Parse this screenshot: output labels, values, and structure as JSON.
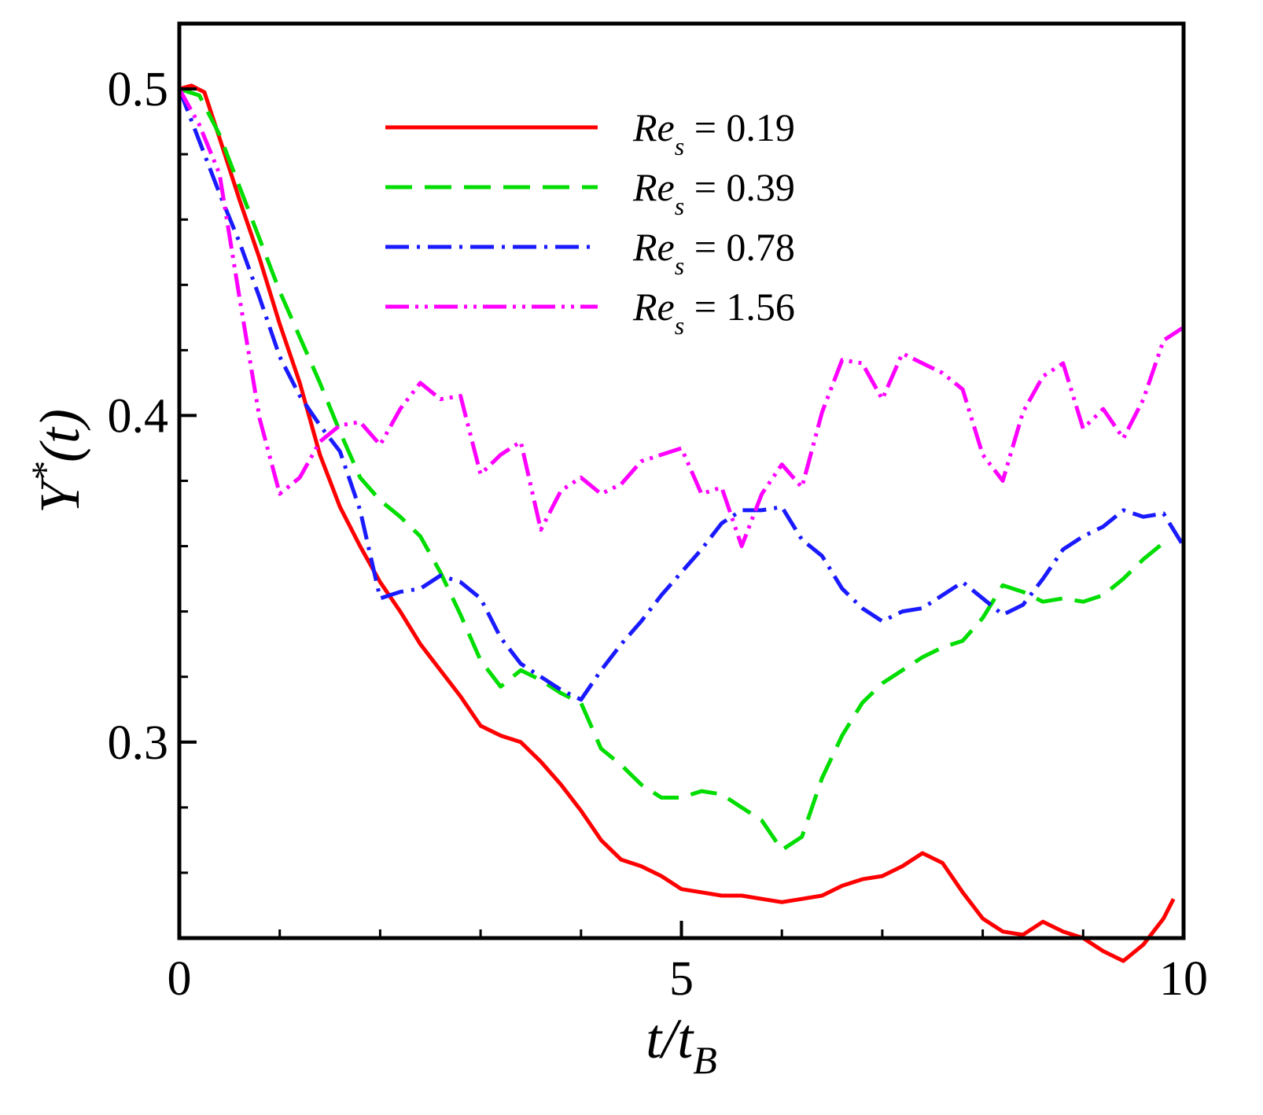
{
  "chart_data": {
    "type": "line",
    "title": "",
    "xlabel": {
      "main": "t/t",
      "subscript": "B"
    },
    "ylabel": {
      "main": "Y",
      "superscript": "*",
      "suffix": "(t)"
    },
    "xlim": [
      0,
      10
    ],
    "ylim": [
      0.24,
      0.52
    ],
    "xticks": [
      0,
      5,
      10
    ],
    "xtick_labels": [
      "0",
      "5",
      "10"
    ],
    "yticks": [
      0.3,
      0.4,
      0.5
    ],
    "ytick_labels": [
      "0.3",
      "0.4",
      "0.5"
    ],
    "grid": false,
    "legend_position": "top-center",
    "series": [
      {
        "name": "Re_s = 0.19",
        "label_main": "Re",
        "label_sub": "s",
        "label_value": " = 0.19",
        "color": "#ff0000",
        "dash": "solid",
        "x": [
          0,
          0.12,
          0.25,
          0.4,
          0.6,
          0.8,
          1.0,
          1.2,
          1.4,
          1.6,
          1.8,
          2.0,
          2.2,
          2.4,
          2.6,
          2.8,
          3.0,
          3.2,
          3.4,
          3.6,
          3.8,
          4.0,
          4.2,
          4.4,
          4.6,
          4.8,
          5.0,
          5.2,
          5.4,
          5.6,
          5.8,
          6.0,
          6.2,
          6.4,
          6.6,
          6.8,
          7.0,
          7.2,
          7.4,
          7.6,
          7.8,
          8.0,
          8.2,
          8.4,
          8.6,
          8.8,
          9.0,
          9.2,
          9.4,
          9.6,
          9.8,
          9.9
        ],
        "y": [
          0.5,
          0.501,
          0.499,
          0.485,
          0.466,
          0.448,
          0.428,
          0.41,
          0.388,
          0.372,
          0.36,
          0.349,
          0.34,
          0.33,
          0.322,
          0.314,
          0.305,
          0.302,
          0.3,
          0.294,
          0.287,
          0.279,
          0.27,
          0.264,
          0.262,
          0.259,
          0.255,
          0.254,
          0.253,
          0.253,
          0.252,
          0.251,
          0.252,
          0.253,
          0.256,
          0.258,
          0.259,
          0.262,
          0.266,
          0.263,
          0.254,
          0.246,
          0.242,
          0.241,
          0.245,
          0.242,
          0.24,
          0.236,
          0.233,
          0.238,
          0.246,
          0.252
        ]
      },
      {
        "name": "Re_s = 0.39",
        "label_main": "Re",
        "label_sub": "s",
        "label_value": " = 0.39",
        "color": "#00dd00",
        "dash": "dashed",
        "x": [
          0,
          0.2,
          0.4,
          0.6,
          0.8,
          1.0,
          1.2,
          1.4,
          1.6,
          1.8,
          2.0,
          2.2,
          2.4,
          2.6,
          2.8,
          3.0,
          3.2,
          3.4,
          3.6,
          3.8,
          4.0,
          4.2,
          4.4,
          4.6,
          4.8,
          5.0,
          5.2,
          5.4,
          5.6,
          5.8,
          6.0,
          6.2,
          6.4,
          6.6,
          6.8,
          7.0,
          7.2,
          7.4,
          7.6,
          7.8,
          8.0,
          8.2,
          8.4,
          8.6,
          8.8,
          9.0,
          9.2,
          9.4,
          9.6,
          9.8
        ],
        "y": [
          0.5,
          0.498,
          0.486,
          0.47,
          0.454,
          0.438,
          0.424,
          0.41,
          0.395,
          0.381,
          0.374,
          0.369,
          0.363,
          0.352,
          0.339,
          0.325,
          0.317,
          0.322,
          0.319,
          0.315,
          0.312,
          0.298,
          0.293,
          0.287,
          0.283,
          0.283,
          0.285,
          0.284,
          0.28,
          0.276,
          0.267,
          0.271,
          0.289,
          0.302,
          0.312,
          0.318,
          0.322,
          0.326,
          0.329,
          0.331,
          0.338,
          0.348,
          0.346,
          0.343,
          0.344,
          0.343,
          0.345,
          0.35,
          0.356,
          0.361
        ]
      },
      {
        "name": "Re_s = 0.78",
        "label_main": "Re",
        "label_sub": "s",
        "label_value": " = 0.78",
        "color": "#1a1aff",
        "dash": "dashdot",
        "x": [
          0,
          0.2,
          0.4,
          0.6,
          0.8,
          1.0,
          1.2,
          1.4,
          1.6,
          1.8,
          2.0,
          2.2,
          2.4,
          2.6,
          2.8,
          3.0,
          3.2,
          3.4,
          3.6,
          3.8,
          4.0,
          4.2,
          4.4,
          4.6,
          4.8,
          5.0,
          5.2,
          5.4,
          5.6,
          5.8,
          6.0,
          6.2,
          6.4,
          6.6,
          6.8,
          7.0,
          7.2,
          7.4,
          7.6,
          7.8,
          8.0,
          8.2,
          8.4,
          8.6,
          8.8,
          9.0,
          9.2,
          9.4,
          9.6,
          9.8,
          10.0
        ],
        "y": [
          0.5,
          0.484,
          0.468,
          0.453,
          0.436,
          0.418,
          0.406,
          0.397,
          0.389,
          0.371,
          0.344,
          0.346,
          0.347,
          0.351,
          0.349,
          0.344,
          0.332,
          0.324,
          0.32,
          0.316,
          0.313,
          0.322,
          0.33,
          0.337,
          0.345,
          0.352,
          0.359,
          0.367,
          0.371,
          0.371,
          0.372,
          0.362,
          0.357,
          0.347,
          0.341,
          0.337,
          0.34,
          0.341,
          0.345,
          0.349,
          0.344,
          0.339,
          0.342,
          0.35,
          0.359,
          0.363,
          0.366,
          0.371,
          0.369,
          0.37,
          0.36
        ]
      },
      {
        "name": "Re_s = 1.56",
        "label_main": "Re",
        "label_sub": "s",
        "label_value": " = 1.56",
        "color": "#ff00ff",
        "dash": "dashdotdot",
        "x": [
          0,
          0.2,
          0.4,
          0.6,
          0.8,
          1.0,
          1.2,
          1.4,
          1.6,
          1.8,
          2.0,
          2.2,
          2.4,
          2.6,
          2.8,
          3.0,
          3.2,
          3.4,
          3.6,
          3.8,
          4.0,
          4.2,
          4.4,
          4.6,
          4.8,
          5.0,
          5.2,
          5.4,
          5.6,
          5.8,
          6.0,
          6.2,
          6.4,
          6.6,
          6.8,
          7.0,
          7.2,
          7.4,
          7.6,
          7.8,
          8.0,
          8.2,
          8.4,
          8.6,
          8.8,
          9.0,
          9.2,
          9.4,
          9.6,
          9.8,
          10.0
        ],
        "y": [
          0.5,
          0.489,
          0.474,
          0.436,
          0.399,
          0.376,
          0.381,
          0.392,
          0.397,
          0.398,
          0.391,
          0.402,
          0.41,
          0.405,
          0.406,
          0.382,
          0.388,
          0.392,
          0.365,
          0.377,
          0.381,
          0.376,
          0.379,
          0.386,
          0.388,
          0.39,
          0.376,
          0.378,
          0.36,
          0.376,
          0.385,
          0.378,
          0.401,
          0.417,
          0.416,
          0.405,
          0.419,
          0.416,
          0.413,
          0.408,
          0.388,
          0.38,
          0.401,
          0.412,
          0.416,
          0.396,
          0.402,
          0.393,
          0.405,
          0.423,
          0.427
        ]
      }
    ]
  }
}
